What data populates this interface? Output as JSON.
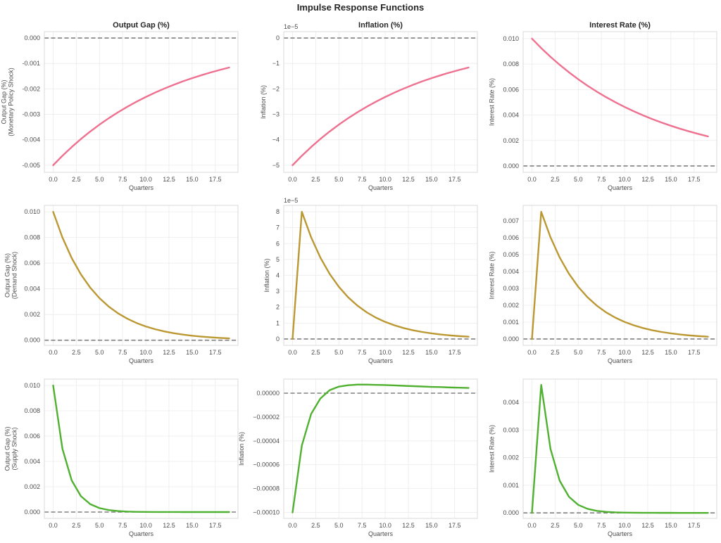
{
  "chart_data": {
    "type": "line",
    "title": "Impulse Response Functions",
    "layout": "3x3 grid",
    "grid": true,
    "x": [
      0,
      1,
      2,
      3,
      4,
      5,
      6,
      7,
      8,
      9,
      10,
      11,
      12,
      13,
      14,
      15,
      16,
      17,
      18,
      19
    ],
    "xlim": [
      -0.95,
      19.95
    ],
    "xticks": [
      0,
      2.5,
      5,
      7.5,
      10,
      12.5,
      15,
      17.5
    ],
    "xtick_labels": [
      "0.0",
      "2.5",
      "5.0",
      "7.5",
      "10.0",
      "12.5",
      "15.0",
      "17.5"
    ],
    "colors": {
      "monetary_policy": "#ef7190",
      "demand": "#bb9832",
      "supply": "#50b131",
      "zero_line": "#808080"
    },
    "panels": [
      {
        "row": 0,
        "col": 0,
        "title": "Output Gap (%)",
        "xlabel": "Quarters",
        "ylabel": [
          "Output Gap (%)",
          "(Monetary Policy Shock)"
        ],
        "shock": "monetary_policy",
        "offset_label": "",
        "ylim": [
          -0.00528,
          0.00025
        ],
        "yticks": [
          0,
          -0.001,
          -0.002,
          -0.003,
          -0.004,
          -0.005
        ],
        "ytick_labels": [
          "0.000",
          "-0.001",
          "-0.002",
          "-0.003",
          "-0.004",
          "-0.005"
        ],
        "values": [
          -0.005,
          -0.00463,
          -0.004287,
          -0.00397,
          -0.003676,
          -0.003404,
          -0.003153,
          -0.002919,
          -0.002703,
          -0.002503,
          -0.002318,
          -0.002146,
          -0.001988,
          -0.00184,
          -0.001704,
          -0.001578,
          -0.001462,
          -0.001353,
          -0.001253,
          -0.00116
        ]
      },
      {
        "row": 0,
        "col": 1,
        "title": "Inflation (%)",
        "xlabel": "Quarters",
        "ylabel": [
          "Inflation (%)"
        ],
        "shock": "monetary_policy",
        "offset_label": "1e−5",
        "ylim": [
          -5.28e-05,
          2.5e-06
        ],
        "yticks": [
          0,
          -1e-05,
          -2e-05,
          -3e-05,
          -4e-05,
          -5e-05
        ],
        "ytick_labels": [
          "0",
          "−1",
          "−2",
          "−3",
          "−4",
          "−5"
        ],
        "values": [
          -5e-05,
          -4.63e-05,
          -4.287e-05,
          -3.97e-05,
          -3.676e-05,
          -3.404e-05,
          -3.153e-05,
          -2.919e-05,
          -2.703e-05,
          -2.503e-05,
          -2.318e-05,
          -2.146e-05,
          -1.988e-05,
          -1.84e-05,
          -1.704e-05,
          -1.578e-05,
          -1.462e-05,
          -1.353e-05,
          -1.253e-05,
          -1.16e-05
        ]
      },
      {
        "row": 0,
        "col": 2,
        "title": "Interest Rate (%)",
        "xlabel": "Quarters",
        "ylabel": [
          "Interest Rate (%)"
        ],
        "shock": "monetary_policy",
        "offset_label": "",
        "ylim": [
          -0.0005,
          0.01055
        ],
        "yticks": [
          0,
          0.002,
          0.004,
          0.006,
          0.008,
          0.01
        ],
        "ytick_labels": [
          "0.000",
          "0.002",
          "0.004",
          "0.006",
          "0.008",
          "0.010"
        ],
        "values": [
          0.01,
          0.00926,
          0.008575,
          0.00794,
          0.007353,
          0.006809,
          0.006305,
          0.005838,
          0.005406,
          0.005006,
          0.004636,
          0.004293,
          0.003975,
          0.003681,
          0.003409,
          0.003157,
          0.002923,
          0.002707,
          0.002506,
          0.002321
        ]
      },
      {
        "row": 1,
        "col": 0,
        "title": "",
        "xlabel": "Quarters",
        "ylabel": [
          "Output Gap (%)",
          "(Demand Shock)"
        ],
        "shock": "demand",
        "offset_label": "",
        "ylim": [
          -0.0004,
          0.0105
        ],
        "yticks": [
          0,
          0.002,
          0.004,
          0.006,
          0.008,
          0.01
        ],
        "ytick_labels": [
          "0.000",
          "0.002",
          "0.004",
          "0.006",
          "0.008",
          "0.010"
        ],
        "values": [
          0.01,
          0.008,
          0.0064,
          0.00512,
          0.004096,
          0.003277,
          0.002621,
          0.002097,
          0.001678,
          0.001342,
          0.001074,
          0.000859,
          0.000687,
          0.00055,
          0.00044,
          0.000352,
          0.000281,
          0.000225,
          0.00018,
          0.000144
        ]
      },
      {
        "row": 1,
        "col": 1,
        "title": "",
        "xlabel": "Quarters",
        "ylabel": [
          "Inflation (%)"
        ],
        "shock": "demand",
        "offset_label": "1e−5",
        "ylim": [
          -4e-06,
          8.4e-05
        ],
        "yticks": [
          0,
          1e-05,
          2e-05,
          3e-05,
          4e-05,
          5e-05,
          6e-05,
          7e-05,
          8e-05
        ],
        "ytick_labels": [
          "0",
          "1",
          "2",
          "3",
          "4",
          "5",
          "6",
          "7",
          "8"
        ],
        "values": [
          0,
          8e-05,
          6.4e-05,
          5.12e-05,
          4.096e-05,
          3.277e-05,
          2.621e-05,
          2.097e-05,
          1.678e-05,
          1.342e-05,
          1.074e-05,
          8.59e-06,
          6.87e-06,
          5.5e-06,
          4.4e-06,
          3.52e-06,
          2.81e-06,
          2.25e-06,
          1.8e-06,
          1.44e-06
        ]
      },
      {
        "row": 1,
        "col": 2,
        "title": "",
        "xlabel": "Quarters",
        "ylabel": [
          "Interest Rate (%)"
        ],
        "shock": "demand",
        "offset_label": "",
        "ylim": [
          -0.000377,
          0.00792
        ],
        "yticks": [
          0,
          0.001,
          0.002,
          0.003,
          0.004,
          0.005,
          0.006,
          0.007
        ],
        "ytick_labels": [
          "0.000",
          "0.001",
          "0.002",
          "0.003",
          "0.004",
          "0.005",
          "0.006",
          "0.007"
        ],
        "values": [
          0,
          0.00754,
          0.006032,
          0.004826,
          0.003861,
          0.003089,
          0.002471,
          0.001977,
          0.001581,
          0.001265,
          0.001012,
          0.00081,
          0.000648,
          0.000518,
          0.000415,
          0.000332,
          0.000265,
          0.000212,
          0.00017,
          0.000136
        ]
      },
      {
        "row": 2,
        "col": 0,
        "title": "",
        "xlabel": "Quarters",
        "ylabel": [
          "Output Gap (%)",
          "(Supply Shock)"
        ],
        "shock": "supply",
        "offset_label": "",
        "ylim": [
          -0.0005,
          0.0105
        ],
        "yticks": [
          0,
          0.002,
          0.004,
          0.006,
          0.008,
          0.01
        ],
        "ytick_labels": [
          "0.000",
          "0.002",
          "0.004",
          "0.006",
          "0.008",
          "0.010"
        ],
        "values": [
          0.01,
          0.005,
          0.0025,
          0.00125,
          0.000625,
          0.000313,
          0.000156,
          7.81e-05,
          3.91e-05,
          1.95e-05,
          9.8e-06,
          4.9e-06,
          2.4e-06,
          1.2e-06,
          6e-07,
          3e-07,
          2e-07,
          1e-07,
          0,
          0
        ]
      },
      {
        "row": 2,
        "col": 1,
        "title": "",
        "xlabel": "Quarters",
        "ylabel": [
          "Inflation (%)"
        ],
        "shock": "supply",
        "offset_label": "",
        "ylim": [
          -0.000105,
          1.18e-05
        ],
        "yticks": [
          0,
          -2e-05,
          -4e-05,
          -6e-05,
          -8e-05,
          -0.0001
        ],
        "ytick_labels": [
          "0.00000",
          "−0.00002",
          "−0.00004",
          "−0.00006",
          "−0.00008",
          "−0.00010"
        ],
        "values": [
          -0.0001,
          -4.4e-05,
          -1.75e-05,
          -4.5e-06,
          2.5e-06,
          5.5e-06,
          6.7e-06,
          7.2e-06,
          7.2e-06,
          7e-06,
          6.8e-06,
          6.5e-06,
          6.2e-06,
          5.9e-06,
          5.6e-06,
          5.3e-06,
          5.1e-06,
          4.8e-06,
          4.6e-06,
          4.4e-06
        ]
      },
      {
        "row": 2,
        "col": 2,
        "title": "",
        "xlabel": "Quarters",
        "ylabel": [
          "Interest Rate (%)"
        ],
        "shock": "supply",
        "offset_label": "",
        "ylim": [
          -0.0002,
          0.00484
        ],
        "yticks": [
          0,
          0.001,
          0.002,
          0.003,
          0.004
        ],
        "ytick_labels": [
          "0.000",
          "0.001",
          "0.002",
          "0.003",
          "0.004"
        ],
        "values": [
          0,
          0.00463,
          0.002315,
          0.001158,
          0.000579,
          0.000289,
          0.000145,
          7.23e-05,
          3.62e-05,
          1.81e-05,
          9e-06,
          4.5e-06,
          2.3e-06,
          1.1e-06,
          6e-07,
          3e-07,
          1e-07,
          1e-07,
          0,
          0
        ]
      }
    ]
  }
}
